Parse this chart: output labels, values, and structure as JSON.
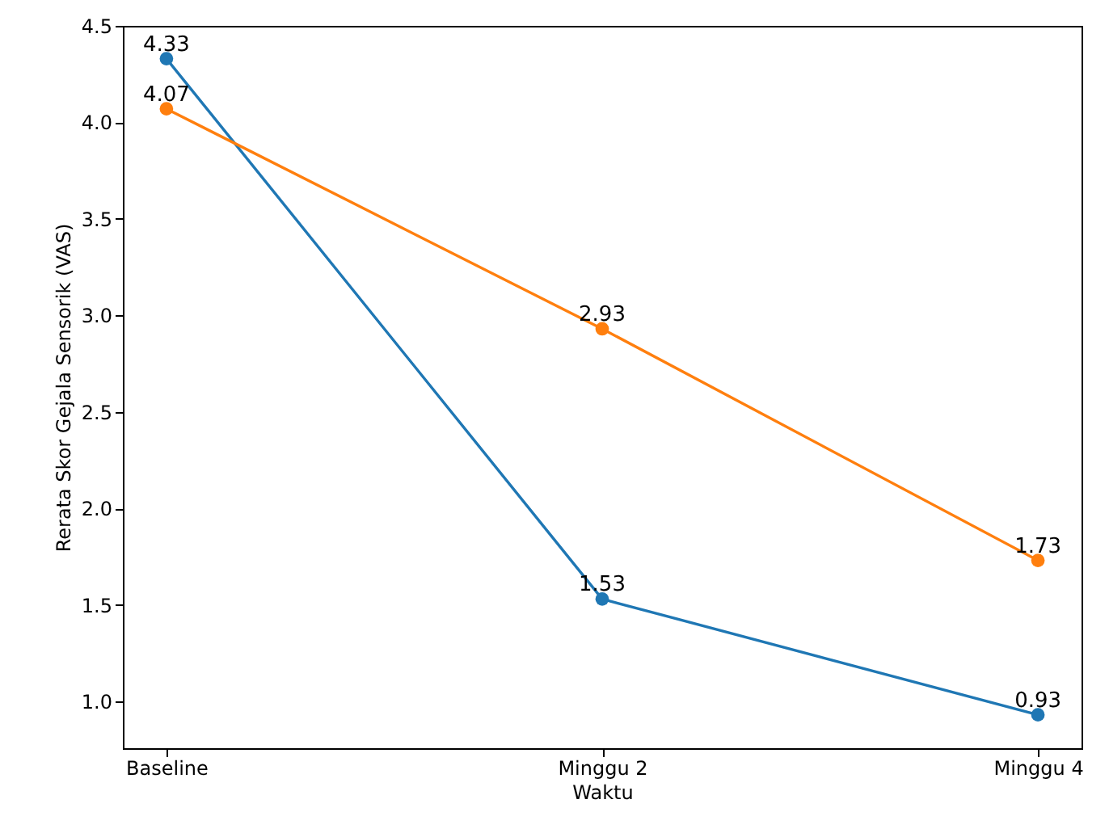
{
  "chart_data": {
    "type": "line",
    "xlabel": "Waktu",
    "ylabel": "Rerata Skor Gejala Sensorik (VAS)",
    "categories": [
      "Baseline",
      "Minggu 2",
      "Minggu 4"
    ],
    "series": [
      {
        "color": "#1f77b4",
        "values": [
          4.33,
          1.53,
          0.93
        ]
      },
      {
        "color": "#ff7f0e",
        "values": [
          4.07,
          2.93,
          1.73
        ]
      }
    ],
    "ylim": [
      0.757,
      4.5
    ],
    "yticks": [
      {
        "value": 1,
        "label": "1.0"
      },
      1.5,
      {
        "value": 2,
        "label": "2.0"
      },
      2.5,
      {
        "value": 3,
        "label": "3.0"
      },
      3.5,
      {
        "value": 4,
        "label": "4.0"
      },
      4.5
    ],
    "grid": false,
    "marker": "circle",
    "line_style": "solid",
    "data_labels": true
  }
}
